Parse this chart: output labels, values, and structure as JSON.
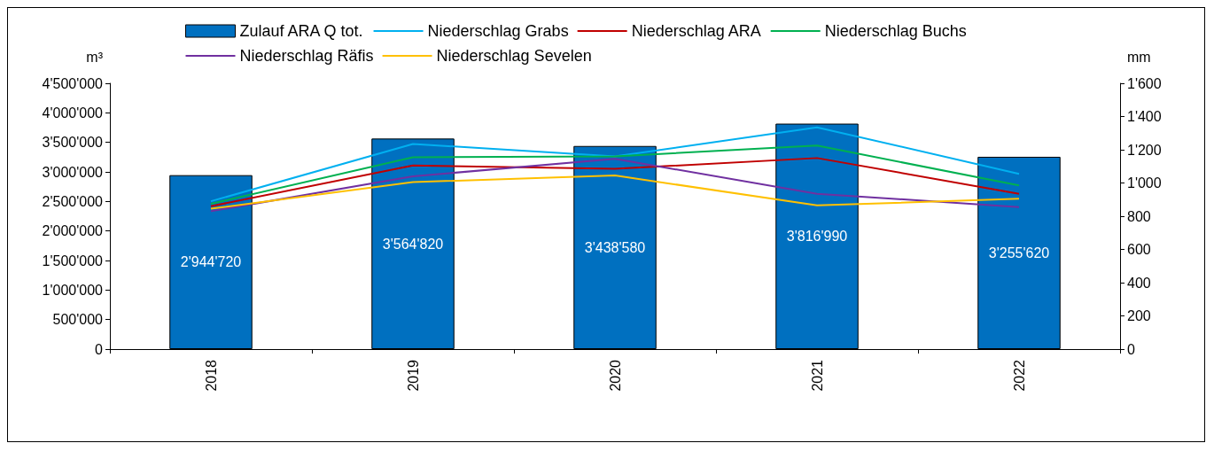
{
  "chart_data": {
    "type": "bar",
    "categories": [
      "2018",
      "2019",
      "2020",
      "2021",
      "2022"
    ],
    "ylabel": "m³",
    "y2label": "mm",
    "ylim": [
      0,
      4500000
    ],
    "yticks": [
      {
        "value": 0,
        "label": "0"
      },
      {
        "value": 500000,
        "label": "500'000"
      },
      {
        "value": 1000000,
        "label": "1'000'000"
      },
      {
        "value": 1500000,
        "label": "1'500'000"
      },
      {
        "value": 2000000,
        "label": "2'000'000"
      },
      {
        "value": 2500000,
        "label": "2'500'000"
      },
      {
        "value": 3000000,
        "label": "3'000'000"
      },
      {
        "value": 3500000,
        "label": "3'500'000"
      },
      {
        "value": 4000000,
        "label": "4'000'000"
      },
      {
        "value": 4500000,
        "label": "4'500'000"
      }
    ],
    "y2lim": [
      0,
      1600
    ],
    "y2ticks": [
      {
        "value": 0,
        "label": "0"
      },
      {
        "value": 200,
        "label": "200"
      },
      {
        "value": 400,
        "label": "400"
      },
      {
        "value": 600,
        "label": "600"
      },
      {
        "value": 800,
        "label": "800"
      },
      {
        "value": 1000,
        "label": "1'000"
      },
      {
        "value": 1200,
        "label": "1'200"
      },
      {
        "value": 1400,
        "label": "1'400"
      },
      {
        "value": 1600,
        "label": "1'600"
      }
    ],
    "legend": "top",
    "grid": false,
    "marker": "none",
    "series": [
      {
        "name": "Zulauf ARA Q tot.",
        "color": "#0070c0",
        "values": [
          2944720,
          3564820,
          3438580,
          3816990,
          3255620
        ],
        "value_labels": [
          "2'944'720",
          "3'564'820",
          "3'438'580",
          "3'816'990",
          "3'255'620"
        ]
      },
      {
        "name": "Niederschlag Grabs",
        "type": "line",
        "axis": "y2",
        "color": "#00b0f0",
        "values": [
          890,
          1235,
          1160,
          1335,
          1055
        ]
      },
      {
        "name": "Niederschlag ARA",
        "type": "line",
        "axis": "y2",
        "color": "#c00000",
        "values": [
          860,
          1105,
          1085,
          1150,
          935
        ]
      },
      {
        "name": "Niederschlag Buchs",
        "type": "line",
        "axis": "y2",
        "color": "#00b050",
        "values": [
          875,
          1155,
          1160,
          1225,
          985
        ]
      },
      {
        "name": "Niederschlag Räfis",
        "type": "line",
        "axis": "y2",
        "color": "#7030a0",
        "values": [
          830,
          1040,
          1145,
          935,
          855
        ]
      },
      {
        "name": "Niederschlag Sevelen",
        "type": "line",
        "axis": "y2",
        "color": "#ffc000",
        "values": [
          845,
          1005,
          1045,
          865,
          905
        ]
      }
    ]
  }
}
